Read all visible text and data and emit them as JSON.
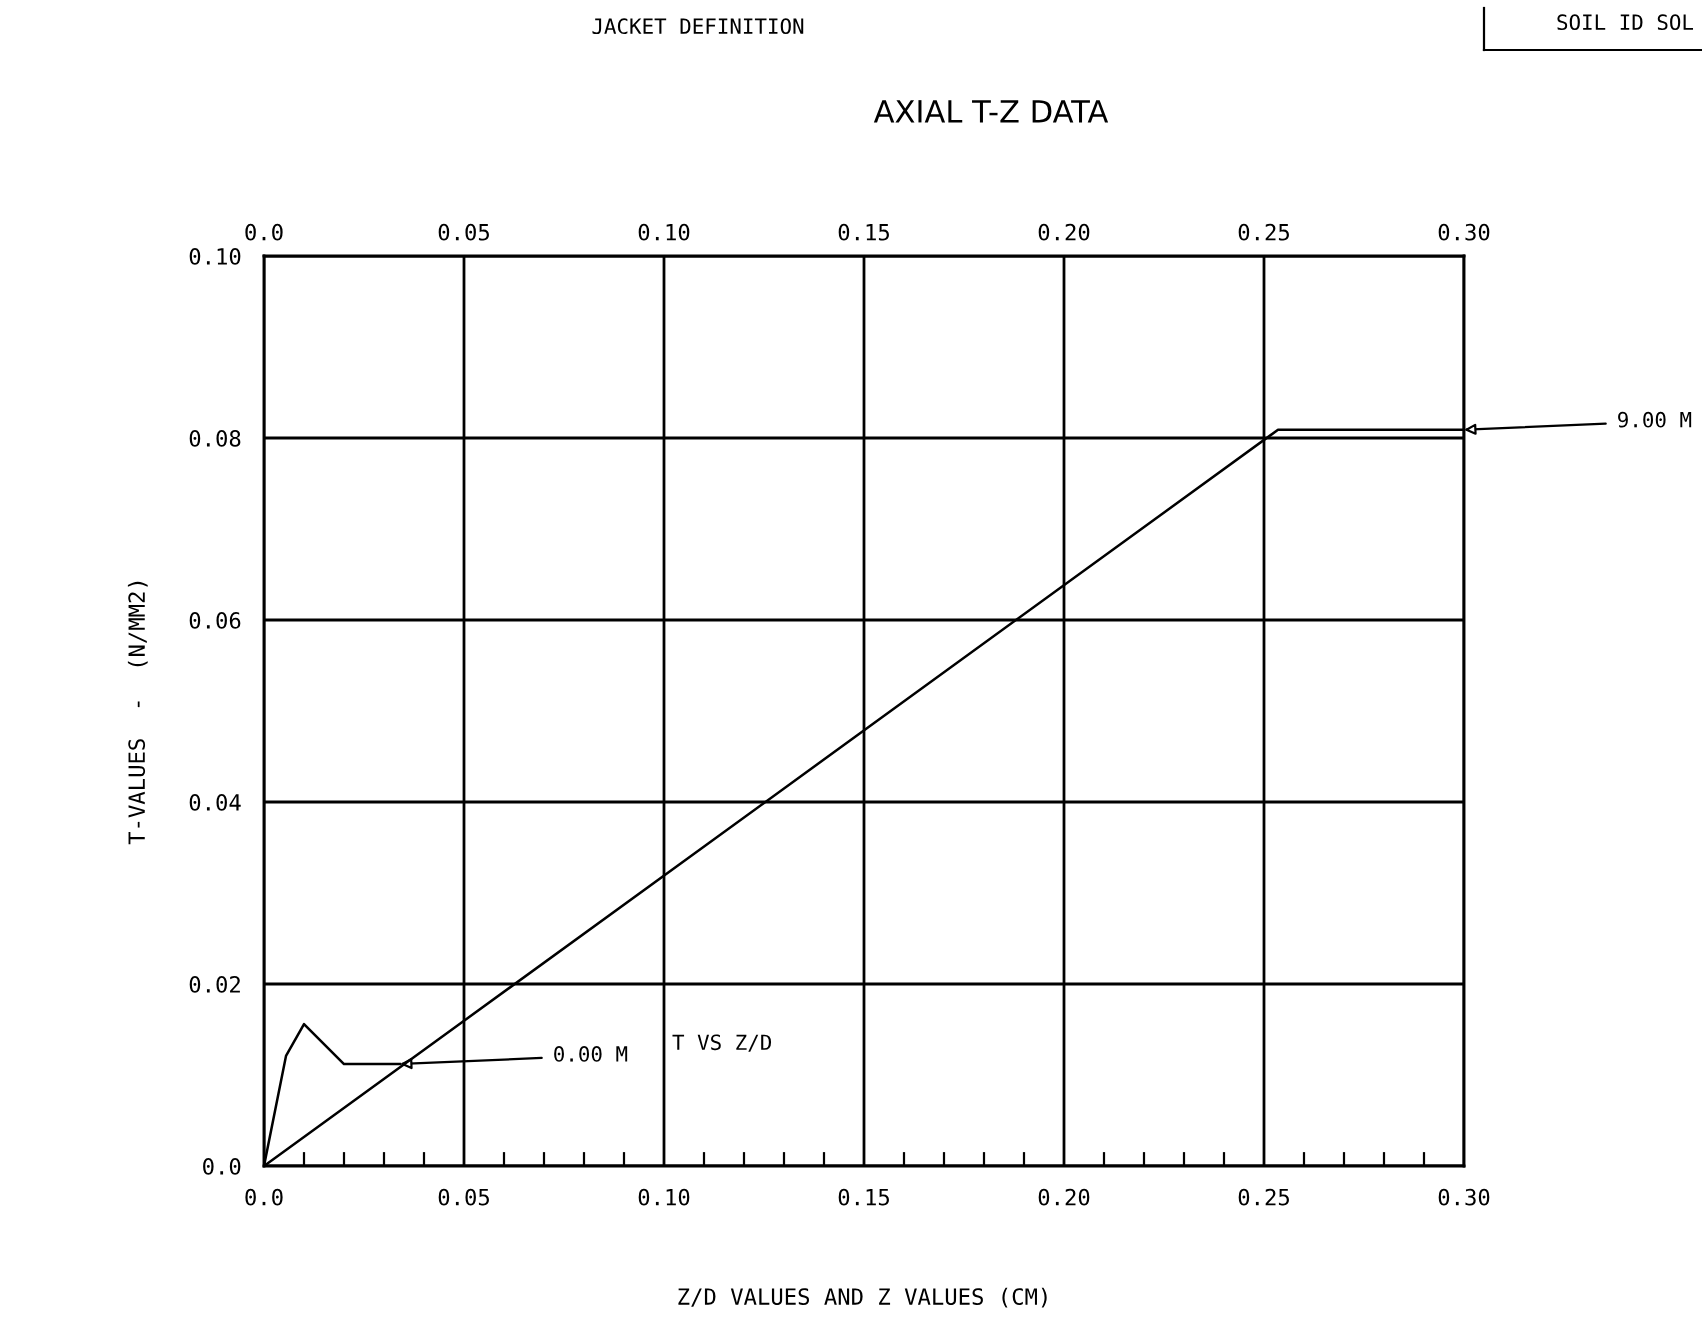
{
  "chart_data": {
    "type": "line",
    "title": "AXIAL T-Z DATA",
    "subtitle": "JACKET DEFINITION",
    "xlabel": "Z/D VALUES AND Z VALUES (CM)",
    "ylabel": "T-VALUES  -  (N/MM2)",
    "annotations": [
      "SOIL ID SOL",
      "T VS Z/D"
    ],
    "series": [
      {
        "name": "0.00 M",
        "color": "#000000",
        "x": [
          0.0,
          0.0055,
          0.01,
          0.02,
          0.034
        ],
        "values": [
          0.0,
          0.0121,
          0.0156,
          0.0112,
          0.0112
        ]
      },
      {
        "name": "9.00 M",
        "color": "#000000",
        "x": [
          0.0,
          0.2535,
          0.3
        ],
        "values": [
          0.0,
          0.0809,
          0.0809
        ]
      }
    ],
    "xlim": [
      0.0,
      0.3
    ],
    "xticks": [
      {
        "value": 0.0,
        "label": "0.0"
      },
      {
        "value": 0.05,
        "label": "0.05"
      },
      {
        "value": 0.1,
        "label": "0.10"
      },
      {
        "value": 0.15,
        "label": "0.15"
      },
      {
        "value": 0.2,
        "label": "0.20"
      },
      {
        "value": 0.25,
        "label": "0.25"
      },
      {
        "value": 0.3,
        "label": "0.30"
      }
    ],
    "x2lim": [
      0.0,
      0.3
    ],
    "x2ticks": [
      {
        "value": 0.0,
        "label": "0.0"
      },
      {
        "value": 0.05,
        "label": "0.05"
      },
      {
        "value": 0.1,
        "label": "0.10"
      },
      {
        "value": 0.15,
        "label": "0.15"
      },
      {
        "value": 0.2,
        "label": "0.20"
      },
      {
        "value": 0.25,
        "label": "0.25"
      },
      {
        "value": 0.3,
        "label": "0.30"
      }
    ],
    "ylim": [
      0.0,
      0.1
    ],
    "yticks": [
      {
        "value": 0.0,
        "label": "0.0"
      },
      {
        "value": 0.02,
        "label": "0.02"
      },
      {
        "value": 0.04,
        "label": "0.04"
      },
      {
        "value": 0.06,
        "label": "0.06"
      },
      {
        "value": 0.08,
        "label": "0.08"
      },
      {
        "value": 0.1,
        "label": "0.10"
      }
    ],
    "grid": true,
    "legend": false,
    "marker": "none",
    "line_style": "solid"
  }
}
